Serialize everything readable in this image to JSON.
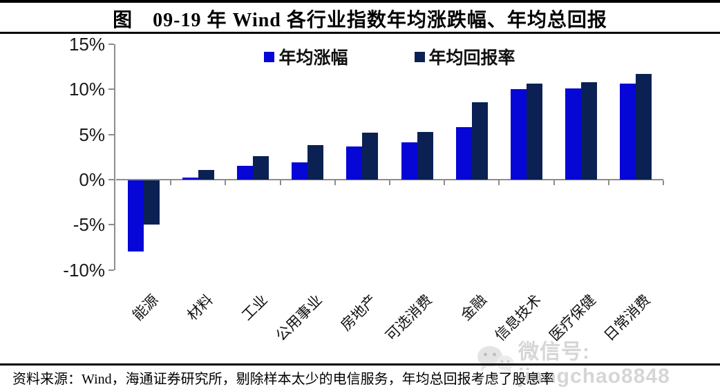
{
  "header": {
    "title": "图　09-19 年 Wind 各行业指数年均涨跌幅、年均总回报"
  },
  "legend": {
    "items": [
      {
        "label": "年均涨幅",
        "color": "#0606d6"
      },
      {
        "label": "年均回报率",
        "color": "#0b2153"
      }
    ]
  },
  "chart_data": {
    "type": "bar",
    "title": "09-19 年 Wind 各行业指数年均涨跌幅、年均总回报",
    "categories": [
      "能源",
      "材料",
      "工业",
      "公用事业",
      "房地产",
      "可选消费",
      "金融",
      "信息技术",
      "医疗保健",
      "日常消费"
    ],
    "series": [
      {
        "name": "年均涨幅",
        "color": "#0606d6",
        "values": [
          -7.9,
          0.2,
          1.5,
          1.9,
          3.7,
          4.1,
          5.8,
          10.0,
          10.1,
          10.6
        ]
      },
      {
        "name": "年均回报率",
        "color": "#0b2153",
        "values": [
          -4.9,
          1.1,
          2.6,
          3.8,
          5.2,
          5.3,
          8.6,
          10.6,
          10.8,
          11.7
        ]
      }
    ],
    "xlabel": "",
    "ylabel": "",
    "unit": "%",
    "y_ticks": [
      {
        "label": "15%",
        "value": 15
      },
      {
        "label": "10%",
        "value": 10
      },
      {
        "label": "5%",
        "value": 5
      },
      {
        "label": "0%",
        "value": 0
      },
      {
        "label": "-5%",
        "value": -5
      },
      {
        "label": "-10%",
        "value": -10
      }
    ],
    "ylim": [
      -10,
      15
    ],
    "grid": false,
    "legend_position": "top-center"
  },
  "colors": {
    "series1": "#0606d6",
    "series2": "#0b2153",
    "axis": "#8c8c8c",
    "rule": "#000000",
    "watermark": "#d6d6d6"
  },
  "watermark": {
    "icon": "wechat-icon",
    "text": "微信号: jiangchao8848"
  },
  "footer": {
    "source": "资料来源：Wind，海通证券研究所，剔除样本太少的电信服务，年均总回报考虑了股息率"
  }
}
